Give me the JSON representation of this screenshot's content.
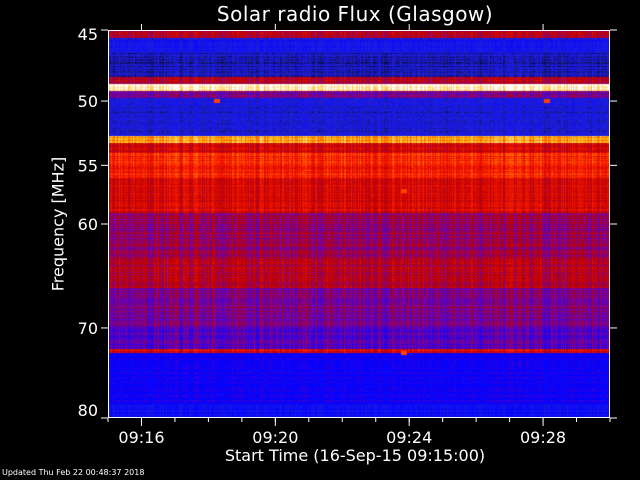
{
  "chart_data": {
    "type": "heatmap",
    "title": "Solar radio Flux (Glasgow)",
    "xlabel": "Start Time (16-Sep-15 09:15:00)",
    "ylabel": "Frequency [MHz]",
    "x_range": [
      "09:15:00",
      "09:30:00"
    ],
    "y_range": [
      45,
      80
    ],
    "x_ticks": [
      "09:16",
      "09:20",
      "09:24",
      "09:28"
    ],
    "y_ticks": [
      45,
      50,
      55,
      60,
      70,
      80
    ],
    "colormap": [
      "#000000",
      "#2020e0",
      "#0000ff",
      "#6a00b0",
      "#c00000",
      "#ff2000",
      "#ffb000",
      "#ffffff"
    ],
    "bands": [
      {
        "from": 45.0,
        "to": 45.5,
        "level": 0.55
      },
      {
        "from": 45.5,
        "to": 46.5,
        "level": 0.18
      },
      {
        "from": 46.5,
        "to": 48.2,
        "level": 0.12
      },
      {
        "from": 48.2,
        "to": 48.7,
        "level": 0.55
      },
      {
        "from": 48.7,
        "to": 49.2,
        "level": 0.98
      },
      {
        "from": 49.2,
        "to": 49.7,
        "level": 0.45
      },
      {
        "from": 49.7,
        "to": 52.6,
        "level": 0.15
      },
      {
        "from": 52.6,
        "to": 53.2,
        "level": 0.85
      },
      {
        "from": 53.2,
        "to": 54.0,
        "level": 0.6
      },
      {
        "from": 54.0,
        "to": 56.0,
        "level": 0.7
      },
      {
        "from": 56.0,
        "to": 59.0,
        "level": 0.62
      },
      {
        "from": 59.0,
        "to": 63.0,
        "level": 0.5
      },
      {
        "from": 63.0,
        "to": 66.0,
        "level": 0.55
      },
      {
        "from": 66.0,
        "to": 70.0,
        "level": 0.46
      },
      {
        "from": 70.0,
        "to": 72.3,
        "level": 0.4
      },
      {
        "from": 72.3,
        "to": 72.7,
        "level": 0.62
      },
      {
        "from": 72.7,
        "to": 78.5,
        "level": 0.3
      },
      {
        "from": 78.5,
        "to": 80.0,
        "level": 0.22
      }
    ],
    "grid": false,
    "legend": "none"
  },
  "footer": {
    "updated": "Updated Thu Feb 22 00:48:37 2018"
  }
}
